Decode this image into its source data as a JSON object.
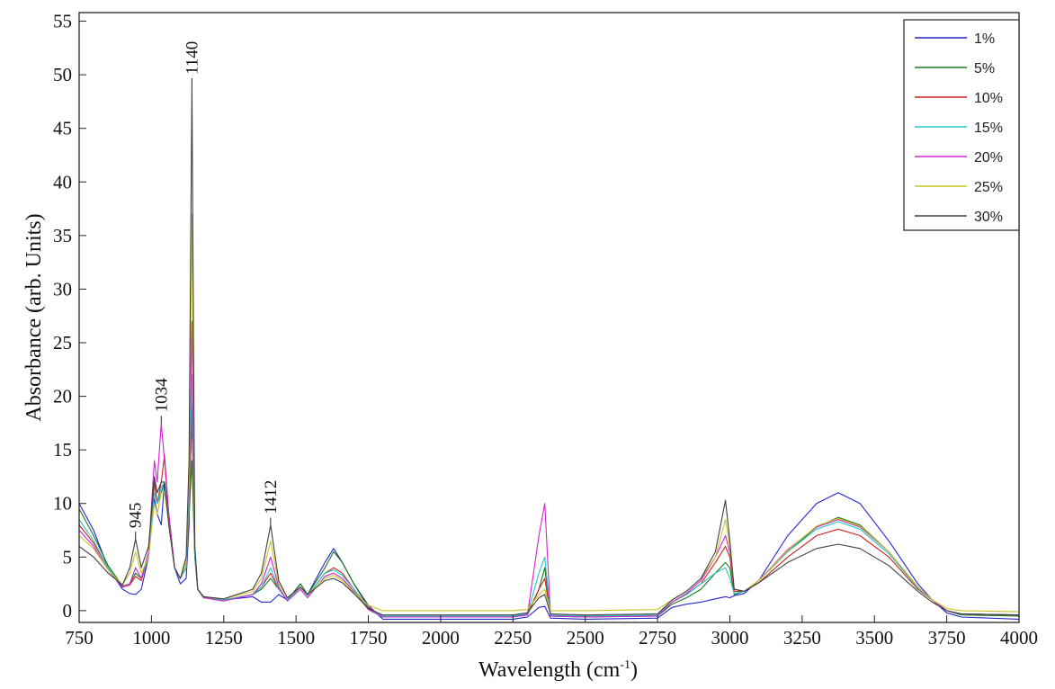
{
  "chart_data": {
    "type": "line",
    "title": "",
    "xlabel": "Wavelength (cm",
    "xlabel_sup": "-1",
    "xlabel_end": ")",
    "ylabel": "Absorbance (arb. Units)",
    "xlim": [
      750,
      4000
    ],
    "ylim": [
      -1.1,
      55.8
    ],
    "xticks": [
      750,
      1000,
      1250,
      1500,
      1750,
      2000,
      2250,
      2500,
      2750,
      3000,
      3250,
      3500,
      3750,
      4000
    ],
    "yticks": [
      0,
      5,
      10,
      15,
      20,
      25,
      30,
      35,
      40,
      45,
      50,
      55
    ],
    "grid": false,
    "legend_position": "top-right",
    "x": [
      750,
      800,
      850,
      900,
      925,
      945,
      965,
      990,
      1010,
      1020,
      1034,
      1045,
      1060,
      1080,
      1100,
      1120,
      1130,
      1140,
      1150,
      1160,
      1180,
      1250,
      1350,
      1380,
      1412,
      1440,
      1470,
      1515,
      1540,
      1600,
      1630,
      1660,
      1700,
      1750,
      1800,
      2000,
      2250,
      2300,
      2340,
      2360,
      2380,
      2500,
      2750,
      2800,
      2850,
      2900,
      2950,
      2985,
      3000,
      3015,
      3050,
      3100,
      3200,
      3300,
      3375,
      3450,
      3550,
      3650,
      3700,
      3750,
      3800,
      4000
    ],
    "series": [
      {
        "name": "1%",
        "color": "#2424d0",
        "values": [
          10,
          7.5,
          4,
          2,
          1.6,
          1.5,
          2,
          5,
          10.5,
          9,
          8,
          12,
          8,
          4,
          2.5,
          3,
          8,
          20,
          6,
          2,
          1.3,
          1,
          1.3,
          0.8,
          0.8,
          1.5,
          1,
          2.5,
          1.5,
          4.5,
          5.8,
          4.5,
          2.5,
          0.5,
          -0.8,
          -0.8,
          -0.8,
          -0.6,
          0.3,
          0.4,
          -0.7,
          -0.8,
          -0.7,
          0.3,
          0.6,
          0.8,
          1.1,
          1.3,
          1.2,
          1.4,
          1.6,
          2.8,
          7,
          10,
          11,
          10,
          6.5,
          2.5,
          1,
          -0.2,
          -0.6,
          -0.8
        ]
      },
      {
        "name": "5%",
        "color": "#1a7a1a",
        "values": [
          9.5,
          7,
          4.2,
          2.3,
          2.5,
          3.5,
          3,
          5,
          12,
          10,
          11,
          12,
          9,
          4,
          3,
          4,
          9,
          14,
          5,
          2,
          1.3,
          1,
          1.5,
          2,
          3,
          2,
          1,
          2.5,
          1.5,
          4,
          5.5,
          4.5,
          2.5,
          0.3,
          -0.6,
          -0.6,
          -0.6,
          -0.4,
          2,
          4,
          -0.5,
          -0.6,
          -0.5,
          0.6,
          1.2,
          2,
          3.5,
          4.5,
          4,
          1.5,
          1.8,
          2.8,
          5.5,
          7.8,
          8.7,
          8,
          5.5,
          2.2,
          1,
          0,
          -0.4,
          -0.5
        ]
      },
      {
        "name": "10%",
        "color": "#d02020",
        "values": [
          8,
          6.3,
          4,
          2.2,
          2.4,
          3.2,
          2.8,
          5,
          12,
          10,
          12,
          14.5,
          9,
          4,
          3,
          4,
          10,
          18,
          5,
          2,
          1.2,
          1,
          1.5,
          2.2,
          3.5,
          2,
          1,
          2.2,
          1.4,
          3.5,
          4,
          3.5,
          2,
          0.3,
          -0.5,
          -0.5,
          -0.5,
          -0.3,
          2,
          3,
          -0.4,
          -0.5,
          -0.4,
          0.8,
          1.5,
          2.5,
          4.5,
          6,
          5,
          1.8,
          1.8,
          2.6,
          5,
          7,
          7.6,
          7,
          5,
          2,
          1,
          0,
          -0.3,
          -0.4
        ]
      },
      {
        "name": "15%",
        "color": "#22c8c8",
        "values": [
          8.5,
          6.5,
          4,
          2.2,
          2.5,
          4,
          3,
          5,
          11,
          10,
          11.5,
          12,
          8.5,
          4,
          3,
          4,
          10,
          22,
          5,
          2,
          1.2,
          1,
          1.5,
          2.2,
          4,
          2,
          1,
          2.2,
          1.4,
          3.5,
          3.8,
          3.3,
          2,
          0.2,
          -0.5,
          -0.5,
          -0.5,
          -0.3,
          3.5,
          5,
          -0.4,
          -0.5,
          -0.4,
          0.8,
          1.5,
          2.5,
          3.5,
          4,
          3,
          1.6,
          1.8,
          2.8,
          5.5,
          7.6,
          8.3,
          7.6,
          5.3,
          2.1,
          1,
          0,
          -0.3,
          -0.4
        ]
      },
      {
        "name": "20%",
        "color": "#d024d0",
        "values": [
          7.5,
          6,
          3.8,
          2.2,
          2.5,
          4,
          3,
          5.5,
          14,
          12,
          17.5,
          14,
          9,
          4,
          3,
          4.5,
          11,
          27,
          6,
          2,
          1.2,
          0.9,
          1.5,
          2.5,
          5,
          2.2,
          0.9,
          2,
          1.2,
          3.2,
          3.5,
          3,
          1.8,
          0.1,
          -0.6,
          -0.6,
          -0.6,
          -0.4,
          7,
          10,
          -0.5,
          -0.6,
          -0.5,
          0.8,
          1.6,
          2.8,
          5,
          7,
          5.5,
          2,
          1.8,
          2.8,
          5.7,
          7.8,
          8.5,
          7.8,
          5.5,
          2.2,
          1,
          0,
          -0.3,
          -0.4
        ]
      },
      {
        "name": "25%",
        "color": "#c8c424",
        "values": [
          7,
          5.8,
          3.8,
          2.4,
          3.5,
          5.5,
          3.5,
          5,
          10,
          9,
          11,
          11,
          8,
          4,
          3,
          4.5,
          12,
          37,
          6,
          2,
          1.3,
          1.1,
          1.8,
          3,
          6.5,
          2.5,
          1.2,
          2.2,
          1.5,
          3,
          3.3,
          2.8,
          1.7,
          0.5,
          0,
          0,
          0,
          0.1,
          1.5,
          2,
          0,
          0,
          0.1,
          1,
          1.8,
          3,
          5,
          8.5,
          6,
          2,
          1.8,
          2.8,
          5.6,
          7.9,
          8.6,
          7.9,
          5.5,
          2.2,
          1,
          0.2,
          0,
          -0.1
        ]
      },
      {
        "name": "30%",
        "color": "#404040",
        "values": [
          6,
          5,
          3.5,
          2.4,
          4,
          6.7,
          4,
          6,
          12.5,
          11,
          12,
          12,
          8,
          4,
          3,
          5,
          14,
          49,
          6,
          2,
          1.3,
          1.1,
          2,
          3.5,
          8,
          2.8,
          1.2,
          2.2,
          1.5,
          2.8,
          3,
          2.6,
          1.6,
          0.2,
          -0.4,
          -0.4,
          -0.4,
          -0.2,
          1.2,
          1.5,
          -0.3,
          -0.4,
          -0.3,
          1,
          1.8,
          3,
          5.5,
          10.3,
          6.5,
          2,
          1.8,
          2.6,
          4.5,
          5.8,
          6.2,
          5.8,
          4.2,
          1.8,
          0.8,
          0,
          -0.3,
          -0.4
        ]
      }
    ],
    "annotations": [
      {
        "text": "945",
        "x": 945,
        "y": 6.7
      },
      {
        "text": "1034",
        "x": 1034,
        "y": 17.5
      },
      {
        "text": "1140",
        "x": 1140,
        "y": 49
      },
      {
        "text": "1412",
        "x": 1412,
        "y": 8
      }
    ]
  }
}
